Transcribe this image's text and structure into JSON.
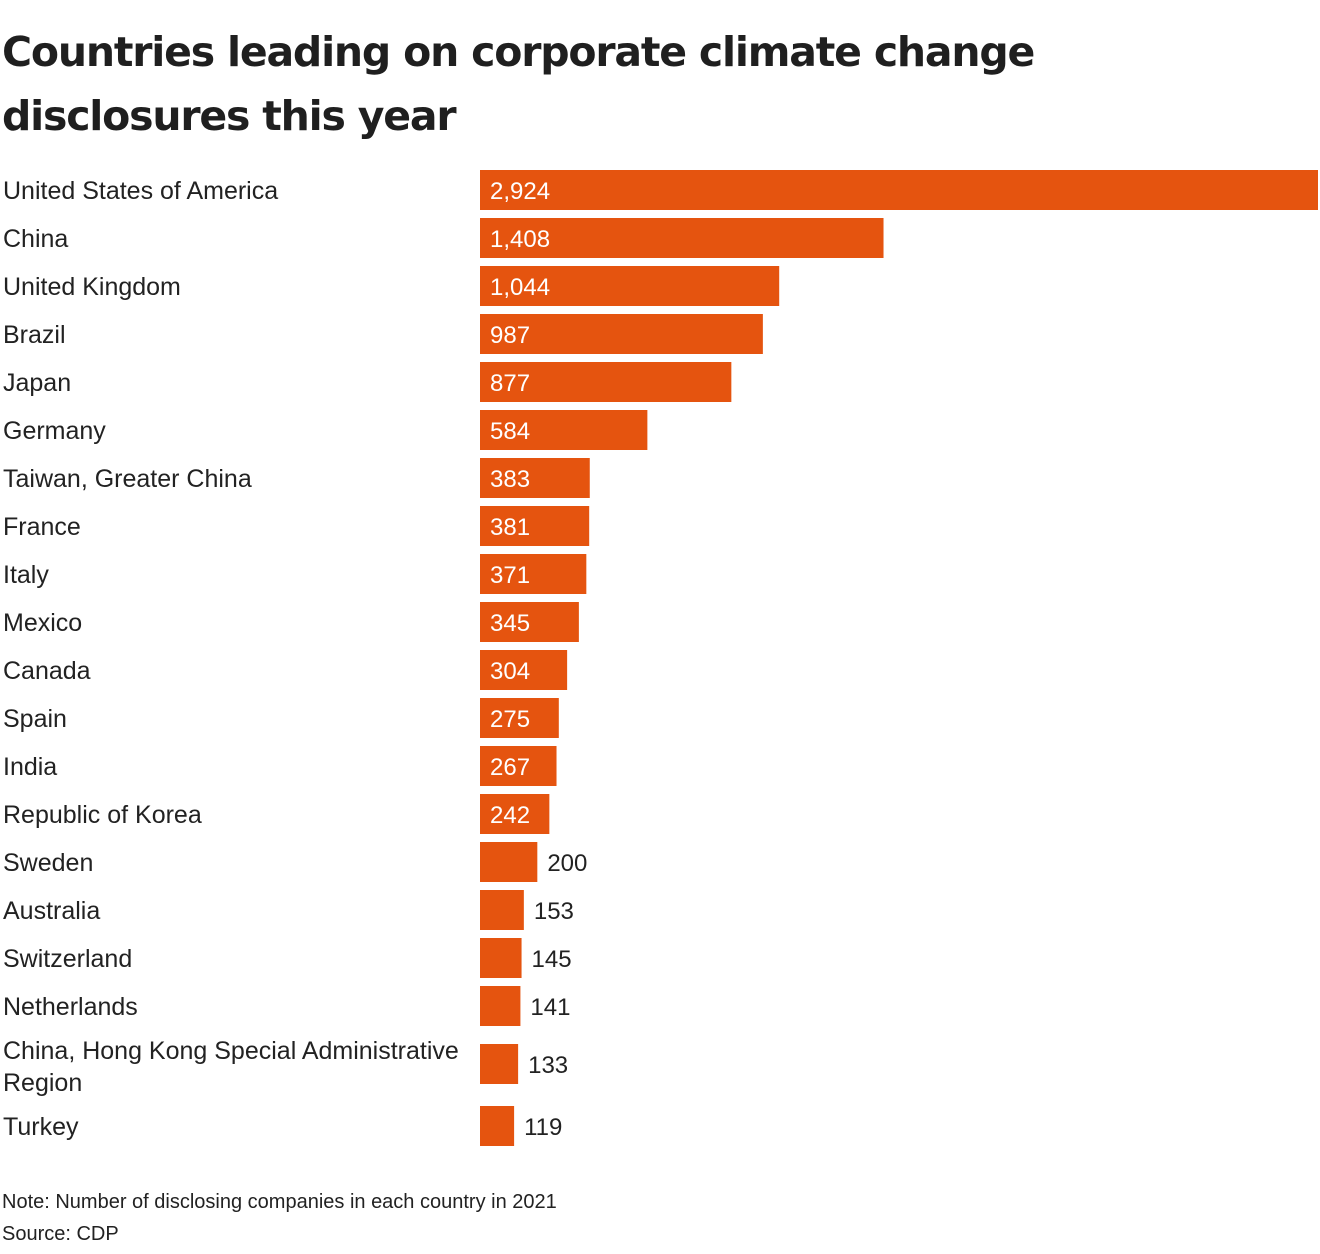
{
  "title": "Countries leading on corporate climate change disclosures this year",
  "note": "Note: Number of disclosing companies in each country in 2021",
  "source": "Source: CDP",
  "colors": {
    "bar": "#e5540f",
    "label_inside": "#ffffff",
    "label_outside": "#222222"
  },
  "chart_data": {
    "type": "bar",
    "orientation": "horizontal",
    "title": "Countries leading on corporate climate change disclosures this year",
    "xlabel": "",
    "ylabel": "",
    "xlim": [
      0,
      2924
    ],
    "grid": false,
    "legend": "none",
    "categories": [
      "United States of America",
      "China",
      "United Kingdom",
      "Brazil",
      "Japan",
      "Germany",
      "Taiwan, Greater China",
      "France",
      "Italy",
      "Mexico",
      "Canada",
      "Spain",
      "India",
      "Republic of Korea",
      "Sweden",
      "Australia",
      "Switzerland",
      "Netherlands",
      "China, Hong Kong Special Administrative Region",
      "Turkey"
    ],
    "values": [
      2924,
      1408,
      1044,
      987,
      877,
      584,
      383,
      381,
      371,
      345,
      304,
      275,
      267,
      242,
      200,
      153,
      145,
      141,
      133,
      119
    ],
    "value_labels": [
      "2,924",
      "1,408",
      "1,044",
      "987",
      "877",
      "584",
      "383",
      "381",
      "371",
      "345",
      "304",
      "275",
      "267",
      "242",
      "200",
      "153",
      "145",
      "141",
      "133",
      "119"
    ]
  }
}
